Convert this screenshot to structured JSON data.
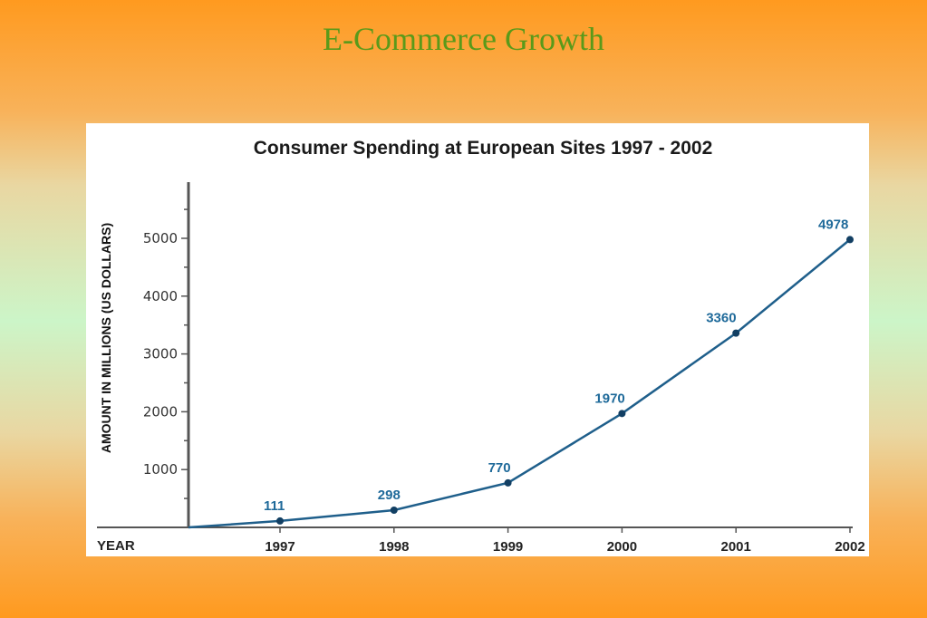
{
  "slide": {
    "title": "E-Commerce Growth"
  },
  "chart_data": {
    "type": "line",
    "title": "Consumer Spending at European Sites 1997 - 2002",
    "ylabel": "AMOUNT IN MILLIONS (US DOLLARS)",
    "xlabel": "YEAR",
    "x": [
      "1997",
      "1998",
      "1999",
      "2000",
      "2001",
      "2002"
    ],
    "series": [
      {
        "values": [
          111,
          298,
          770,
          1970,
          3360,
          4978
        ]
      }
    ],
    "data_labels": [
      "111",
      "298",
      "770",
      "1970",
      "3360",
      "4978"
    ],
    "yticks": [
      1000,
      2000,
      3000,
      4000,
      5000
    ],
    "ytick_labels": [
      "1000",
      "2000",
      "3000",
      "4000",
      "5000"
    ],
    "ylim": [
      0,
      6000
    ],
    "grid": false,
    "colors": {
      "line": "#1f5f8b",
      "label": "#1f6a9a",
      "axis": "#555555"
    }
  }
}
